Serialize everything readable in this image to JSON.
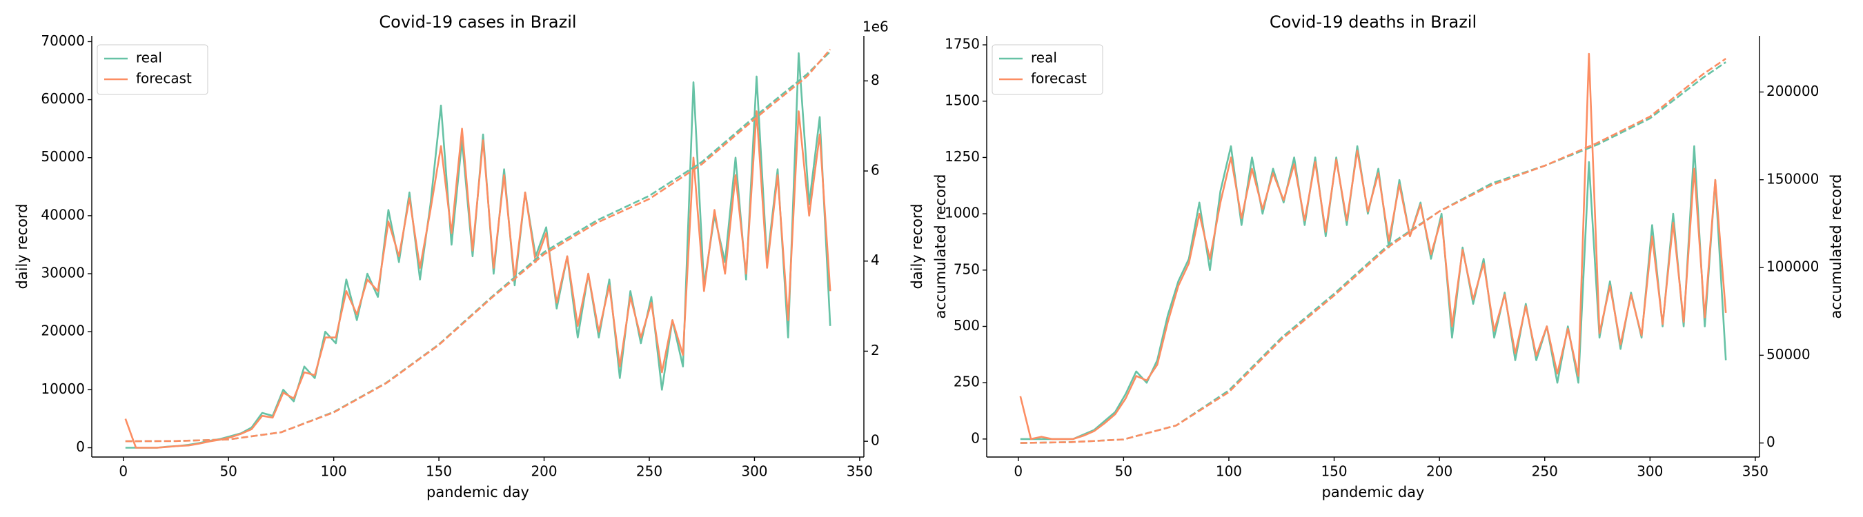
{
  "chart_data": [
    {
      "type": "line",
      "title": "Covid-19 cases in Brazil",
      "xlabel": "pandemic day",
      "ylabel": "daily record",
      "y2label": "accumulated record",
      "y2_offset_label": "1e6",
      "legend": "upper left",
      "xlim": [
        -15,
        352
      ],
      "xticks": [
        0,
        50,
        100,
        150,
        200,
        250,
        300,
        350
      ],
      "ylim": [
        -1600,
        71000
      ],
      "yticks": [
        0,
        10000,
        20000,
        30000,
        40000,
        50000,
        60000,
        70000
      ],
      "y2lim": [
        -350000,
        9000000
      ],
      "y2ticks": [
        {
          "value": 0,
          "label": "0"
        },
        {
          "value": 2000000,
          "label": "2"
        },
        {
          "value": 4000000,
          "label": "4"
        },
        {
          "value": 6000000,
          "label": "6"
        },
        {
          "value": 8000000,
          "label": "8"
        }
      ],
      "x": [
        1,
        6,
        11,
        16,
        21,
        26,
        31,
        36,
        41,
        46,
        51,
        56,
        61,
        66,
        71,
        76,
        81,
        86,
        91,
        96,
        101,
        106,
        111,
        116,
        121,
        126,
        131,
        136,
        141,
        146,
        151,
        156,
        161,
        166,
        171,
        176,
        181,
        186,
        191,
        196,
        201,
        206,
        211,
        216,
        221,
        226,
        231,
        236,
        241,
        246,
        251,
        256,
        261,
        266,
        271,
        276,
        281,
        286,
        291,
        296,
        301,
        306,
        311,
        316,
        321,
        326,
        331,
        336
      ],
      "series": [
        {
          "name": "real",
          "color": "#66c2a5",
          "values": [
            0,
            0,
            0,
            0,
            200,
            300,
            500,
            800,
            1200,
            1500,
            2000,
            2500,
            3500,
            6000,
            5500,
            10000,
            8000,
            14000,
            12000,
            20000,
            18000,
            29000,
            22000,
            30000,
            26000,
            41000,
            32000,
            44000,
            29000,
            42000,
            59000,
            35000,
            53000,
            33000,
            54000,
            30000,
            48000,
            28000,
            44000,
            33000,
            38000,
            24000,
            33000,
            19000,
            30000,
            19000,
            29000,
            12000,
            27000,
            18000,
            26000,
            10000,
            22000,
            14000,
            63000,
            28000,
            40000,
            32000,
            50000,
            29000,
            64000,
            32000,
            48000,
            19000,
            68000,
            42000,
            57000,
            21000
          ]
        },
        {
          "name": "forecast",
          "color": "#fc8d62",
          "values": [
            5000,
            0,
            0,
            0,
            150,
            300,
            400,
            700,
            1100,
            1400,
            1800,
            2400,
            3200,
            5500,
            5200,
            9500,
            8500,
            13000,
            12500,
            19000,
            19000,
            27000,
            23000,
            29000,
            27000,
            39000,
            33000,
            43000,
            31000,
            41000,
            52000,
            37000,
            55000,
            34000,
            53000,
            31000,
            47000,
            29000,
            44000,
            32000,
            37000,
            25000,
            33000,
            21000,
            30000,
            20000,
            28000,
            14000,
            26000,
            19000,
            25000,
            13000,
            22000,
            16000,
            50000,
            27000,
            41000,
            30000,
            47000,
            30000,
            58000,
            31000,
            47000,
            22000,
            58000,
            40000,
            54000,
            27000
          ]
        },
        {
          "axis": "y2",
          "linestyle": "dashed",
          "color": "#66c2a5",
          "x": [
            1,
            25,
            50,
            75,
            100,
            125,
            150,
            175,
            200,
            225,
            250,
            275,
            300,
            325,
            336
          ],
          "values": [
            0,
            5000,
            40000,
            200000,
            650000,
            1300000,
            2150000,
            3200000,
            4200000,
            4900000,
            5450000,
            6200000,
            7200000,
            8150000,
            8650000
          ]
        },
        {
          "axis": "y2",
          "linestyle": "dashed",
          "color": "#fc8d62",
          "x": [
            1,
            25,
            50,
            75,
            100,
            125,
            150,
            175,
            200,
            225,
            250,
            275,
            300,
            325,
            336
          ],
          "values": [
            0,
            5000,
            40000,
            200000,
            640000,
            1290000,
            2140000,
            3180000,
            4150000,
            4850000,
            5380000,
            6150000,
            7150000,
            8100000,
            8700000
          ]
        }
      ]
    },
    {
      "type": "line",
      "title": "Covid-19 deaths in Brazil",
      "xlabel": "pandemic day",
      "ylabel": "daily record",
      "y2label": "accumulated record",
      "legend": "upper left",
      "xlim": [
        -15,
        352
      ],
      "xticks": [
        0,
        50,
        100,
        150,
        200,
        250,
        300,
        350
      ],
      "ylim": [
        -80,
        1790
      ],
      "yticks": [
        0,
        250,
        500,
        750,
        1000,
        1250,
        1500,
        1750
      ],
      "y2lim": [
        -8000,
        232000
      ],
      "y2ticks": [
        0,
        50000,
        100000,
        150000,
        200000
      ],
      "x": [
        1,
        6,
        11,
        16,
        21,
        26,
        31,
        36,
        41,
        46,
        51,
        56,
        61,
        66,
        71,
        76,
        81,
        86,
        91,
        96,
        101,
        106,
        111,
        116,
        121,
        126,
        131,
        136,
        141,
        146,
        151,
        156,
        161,
        166,
        171,
        176,
        181,
        186,
        191,
        196,
        201,
        206,
        211,
        216,
        221,
        226,
        231,
        236,
        241,
        246,
        251,
        256,
        261,
        266,
        271,
        276,
        281,
        286,
        291,
        296,
        301,
        306,
        311,
        316,
        321,
        326,
        331,
        336
      ],
      "series": [
        {
          "name": "real",
          "color": "#66c2a5",
          "values": [
            0,
            0,
            0,
            0,
            0,
            0,
            20,
            40,
            80,
            120,
            200,
            300,
            250,
            350,
            550,
            700,
            800,
            1050,
            750,
            1100,
            1300,
            950,
            1250,
            1000,
            1200,
            1050,
            1250,
            950,
            1250,
            900,
            1250,
            950,
            1300,
            1000,
            1200,
            850,
            1150,
            900,
            1050,
            800,
            1000,
            450,
            850,
            600,
            800,
            450,
            650,
            350,
            600,
            350,
            500,
            250,
            500,
            250,
            1230,
            450,
            700,
            400,
            650,
            450,
            950,
            500,
            1000,
            500,
            1300,
            500,
            1150,
            350
          ]
        },
        {
          "name": "forecast",
          "color": "#fc8d62",
          "values": [
            190,
            0,
            10,
            0,
            0,
            0,
            15,
            35,
            70,
            110,
            180,
            280,
            260,
            330,
            520,
            680,
            780,
            1000,
            800,
            1050,
            1250,
            980,
            1200,
            1020,
            1180,
            1060,
            1220,
            970,
            1230,
            920,
            1240,
            970,
            1280,
            1010,
            1180,
            880,
            1130,
            900,
            1040,
            820,
            980,
            500,
            840,
            620,
            780,
            480,
            640,
            380,
            590,
            370,
            500,
            290,
            490,
            280,
            1710,
            470,
            680,
            420,
            640,
            460,
            900,
            510,
            960,
            520,
            1200,
            540,
            1150,
            560
          ]
        },
        {
          "axis": "y2",
          "linestyle": "dashed",
          "color": "#66c2a5",
          "x": [
            1,
            25,
            50,
            75,
            100,
            125,
            150,
            175,
            200,
            225,
            250,
            275,
            300,
            325,
            336
          ],
          "values": [
            0,
            500,
            2000,
            10000,
            30000,
            60000,
            85000,
            112000,
            132000,
            148000,
            158000,
            170000,
            185000,
            208000,
            217000
          ]
        },
        {
          "axis": "y2",
          "linestyle": "dashed",
          "color": "#fc8d62",
          "x": [
            1,
            25,
            50,
            75,
            100,
            125,
            150,
            175,
            200,
            225,
            250,
            275,
            300,
            325,
            336
          ],
          "values": [
            0,
            500,
            2000,
            10000,
            29000,
            59000,
            84000,
            111000,
            132000,
            147000,
            158000,
            171000,
            186000,
            210000,
            219000
          ]
        }
      ]
    }
  ]
}
